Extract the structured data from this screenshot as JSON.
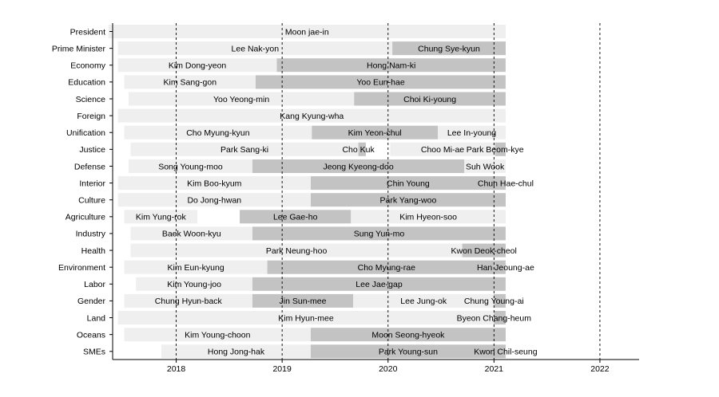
{
  "chart_data": {
    "type": "bar",
    "orientation": "horizontal-timeline",
    "title": "",
    "xlabel": "",
    "ylabel": "",
    "xlim": [
      2017.4,
      2022.37
    ],
    "x_ticks": [
      2018,
      2019,
      2020,
      2021,
      2022
    ],
    "x_tick_labels": [
      "2018",
      "2019",
      "2020",
      "2021",
      "2022"
    ],
    "grid": "vertical dashed at each year",
    "categories": [
      "President",
      "Prime Minister",
      "Economy",
      "Education",
      "Science",
      "Foreign",
      "Unification",
      "Justice",
      "Defense",
      "Interior",
      "Culture",
      "Agriculture",
      "Industry",
      "Health",
      "Environment",
      "Labor",
      "Gender",
      "Land",
      "Oceans",
      "SMEs"
    ],
    "colors": [
      "#efefef",
      "#c3c3c3"
    ],
    "rows": [
      {
        "category": "President",
        "terms": [
          {
            "name": "Moon jae-in",
            "start": 2017.36,
            "end": 2021.11
          }
        ]
      },
      {
        "category": "Prime Minister",
        "terms": [
          {
            "name": "Lee Nak-yon",
            "start": 2017.45,
            "end": 2020.04
          },
          {
            "name": "Chung Sye-kyun",
            "start": 2020.04,
            "end": 2021.11
          }
        ]
      },
      {
        "category": "Economy",
        "terms": [
          {
            "name": "Kim Dong-yeon",
            "start": 2017.45,
            "end": 2018.95
          },
          {
            "name": "Hong Nam-ki",
            "start": 2018.95,
            "end": 2021.11
          }
        ]
      },
      {
        "category": "Education",
        "terms": [
          {
            "name": "Kim Sang-gon",
            "start": 2017.51,
            "end": 2018.75
          },
          {
            "name": "Yoo Eun-hae",
            "start": 2018.75,
            "end": 2021.11
          }
        ]
      },
      {
        "category": "Science",
        "terms": [
          {
            "name": "Yoo Yeong-min",
            "start": 2017.55,
            "end": 2019.68
          },
          {
            "name": "Choi Ki-young",
            "start": 2019.68,
            "end": 2021.11
          }
        ]
      },
      {
        "category": "Foreign",
        "terms": [
          {
            "name": "Kang Kyung-wha",
            "start": 2017.45,
            "end": 2021.11
          }
        ]
      },
      {
        "category": "Unification",
        "terms": [
          {
            "name": "Cho Myung-kyun",
            "start": 2017.51,
            "end": 2019.28
          },
          {
            "name": "Kim Yeon-chul",
            "start": 2019.28,
            "end": 2020.47
          },
          {
            "name": "Lee In-young",
            "start": 2020.47,
            "end": 2021.11
          }
        ]
      },
      {
        "category": "Justice",
        "terms": [
          {
            "name": "Park Sang-ki",
            "start": 2017.57,
            "end": 2019.72
          },
          {
            "name": "Cho Kuk",
            "start": 2019.72,
            "end": 2019.79
          },
          {
            "name": "Choo Mi-ae",
            "start": 2020.02,
            "end": 2021.01
          },
          {
            "name": "Park Beom-kye",
            "start": 2021.01,
            "end": 2021.11
          }
        ]
      },
      {
        "category": "Defense",
        "terms": [
          {
            "name": "Song Young-moo",
            "start": 2017.55,
            "end": 2018.72
          },
          {
            "name": "Jeong Kyeong-doo",
            "start": 2018.72,
            "end": 2020.72
          },
          {
            "name": "Suh Wook",
            "start": 2020.72,
            "end": 2021.11
          }
        ]
      },
      {
        "category": "Interior",
        "terms": [
          {
            "name": "Kim Boo-kyum",
            "start": 2017.45,
            "end": 2019.27
          },
          {
            "name": "Chin Young",
            "start": 2019.27,
            "end": 2021.11
          },
          {
            "name": "Chun Hae-chul",
            "start": 2021.11,
            "end": 2021.11
          }
        ]
      },
      {
        "category": "Culture",
        "terms": [
          {
            "name": "Do Jong-hwan",
            "start": 2017.45,
            "end": 2019.27
          },
          {
            "name": "Park Yang-woo",
            "start": 2019.27,
            "end": 2021.11
          }
        ]
      },
      {
        "category": "Agriculture",
        "terms": [
          {
            "name": "Kim Yung-rok",
            "start": 2017.51,
            "end": 2018.2
          },
          {
            "name": "Lee Gae-ho",
            "start": 2018.6,
            "end": 2019.65
          },
          {
            "name": "Kim Hyeon-soo",
            "start": 2019.65,
            "end": 2021.11
          }
        ]
      },
      {
        "category": "Industry",
        "terms": [
          {
            "name": "Baek Woon-kyu",
            "start": 2017.57,
            "end": 2018.72
          },
          {
            "name": "Sung Yun-mo",
            "start": 2018.72,
            "end": 2021.11
          }
        ]
      },
      {
        "category": "Health",
        "terms": [
          {
            "name": "Park Neung-hoo",
            "start": 2017.57,
            "end": 2020.7
          },
          {
            "name": "Kwon Deok-cheol",
            "start": 2020.7,
            "end": 2021.11
          }
        ]
      },
      {
        "category": "Environment",
        "terms": [
          {
            "name": "Kim Eun-kyung",
            "start": 2017.51,
            "end": 2018.86
          },
          {
            "name": "Cho Myung-rae",
            "start": 2018.86,
            "end": 2021.11
          },
          {
            "name": "Han Jeoung-ae",
            "start": 2021.11,
            "end": 2021.11
          }
        ]
      },
      {
        "category": "Labor",
        "terms": [
          {
            "name": "Kim Young-joo",
            "start": 2017.62,
            "end": 2018.72
          },
          {
            "name": "Lee Jae-gap",
            "start": 2018.72,
            "end": 2021.11
          }
        ]
      },
      {
        "category": "Gender",
        "terms": [
          {
            "name": "Chung Hyun-back",
            "start": 2017.51,
            "end": 2018.72
          },
          {
            "name": "Jin Sun-mee",
            "start": 2018.72,
            "end": 2019.67
          },
          {
            "name": "Lee Jung-ok",
            "start": 2019.67,
            "end": 2021.0
          },
          {
            "name": "Chung Young-ai",
            "start": 2021.0,
            "end": 2021.11
          }
        ]
      },
      {
        "category": "Land",
        "terms": [
          {
            "name": "Kim Hyun-mee",
            "start": 2017.45,
            "end": 2021.0
          },
          {
            "name": "Byeon Chang-heum",
            "start": 2021.0,
            "end": 2021.11
          }
        ]
      },
      {
        "category": "Oceans",
        "terms": [
          {
            "name": "Kim Young-choon",
            "start": 2017.51,
            "end": 2019.27
          },
          {
            "name": "Moon Seong-hyeok",
            "start": 2019.27,
            "end": 2021.11
          }
        ]
      },
      {
        "category": "SMEs",
        "terms": [
          {
            "name": "Hong Jong-hak",
            "start": 2017.86,
            "end": 2019.27
          },
          {
            "name": "Park Young-sun",
            "start": 2019.27,
            "end": 2021.11
          },
          {
            "name": "Kwon Chil-seung",
            "start": 2021.11,
            "end": 2021.11
          }
        ]
      }
    ]
  }
}
